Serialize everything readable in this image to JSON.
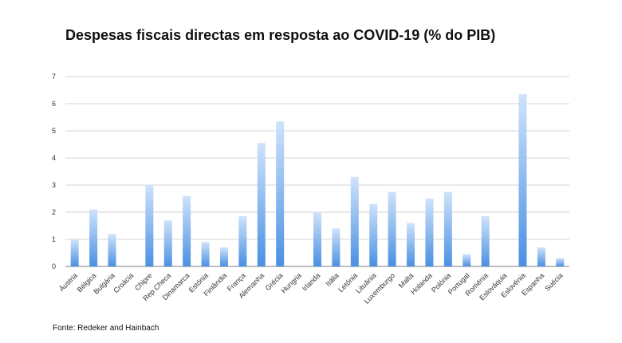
{
  "chart_data": {
    "type": "bar",
    "title": "Despesas fiscais directas em resposta ao COVID-19 (% do PIB)",
    "source": "Fonte: Redeker and Hainbach",
    "ylim": [
      0,
      7
    ],
    "yticks": [
      0,
      1,
      2,
      3,
      4,
      5,
      6,
      7
    ],
    "grid": true,
    "bar_color_top": "#cfe3fb",
    "bar_color_bottom": "#4a90e2",
    "categories": [
      "Áustria",
      "Bélgica",
      "Bulgária",
      "Croácia",
      "Chipre",
      "Rep.Checa",
      "Dinamarca",
      "Estónia",
      "Finlândia",
      "França",
      "Alemanha",
      "Grécia",
      "Hungria",
      "Irlanda",
      "Itália",
      "Letónia",
      "Lituânia",
      "Luxemburgo",
      "Malta",
      "Holanda",
      "Polónia",
      "Portugal",
      "Roménia",
      "Eslováquia",
      "Eslovénia",
      "Espanha",
      "Suécia"
    ],
    "values": [
      1.0,
      2.1,
      1.2,
      0,
      3.0,
      1.7,
      2.6,
      0.9,
      0.7,
      1.85,
      4.55,
      5.35,
      0,
      2.0,
      1.4,
      3.3,
      2.3,
      2.75,
      1.6,
      2.5,
      2.75,
      0.45,
      1.85,
      0,
      6.35,
      0.7,
      0.3
    ]
  }
}
